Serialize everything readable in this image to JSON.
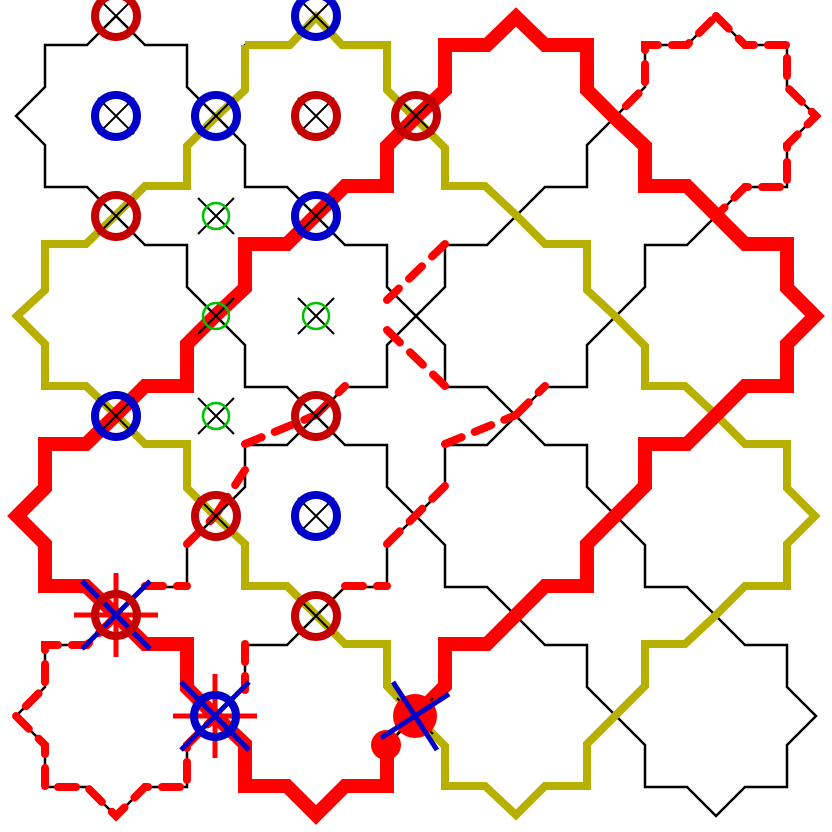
{
  "puzzle": {
    "grid_columns": 4,
    "grid_rows": 4,
    "tile_shape": "eight-point-star",
    "colors": {
      "background": "#ffffff",
      "outline": "#000000",
      "olive_path": "#b8b000",
      "red_path": "#ff0000",
      "crossing_dark_red": "#c40000",
      "crossing_blue": "#0000c8",
      "crossing_green": "#00c000"
    },
    "crossings": [
      {
        "col": 0,
        "row": 0,
        "type": "circle",
        "color": "crossing_dark_red"
      },
      {
        "col": 2,
        "row": 0,
        "type": "circle",
        "color": "crossing_blue"
      },
      {
        "col": 0,
        "row": 1,
        "type": "circle",
        "color": "crossing_blue"
      },
      {
        "col": 1,
        "row": 1,
        "type": "circle",
        "color": "crossing_blue"
      },
      {
        "col": 2,
        "row": 1,
        "type": "circle",
        "color": "crossing_dark_red"
      },
      {
        "col": 3,
        "row": 1,
        "type": "circle",
        "color": "crossing_dark_red"
      },
      {
        "col": 0,
        "row": 2,
        "type": "circle",
        "color": "crossing_dark_red"
      },
      {
        "col": 1,
        "row": 2,
        "type": "small-circle",
        "color": "crossing_green"
      },
      {
        "col": 2,
        "row": 2,
        "type": "circle",
        "color": "crossing_blue"
      },
      {
        "col": 1,
        "row": 3,
        "type": "small-circle",
        "color": "crossing_green"
      },
      {
        "col": 2,
        "row": 3,
        "type": "small-circle",
        "color": "crossing_green"
      },
      {
        "col": 0,
        "row": 4,
        "type": "circle",
        "color": "crossing_blue"
      },
      {
        "col": 1,
        "row": 4,
        "type": "small-circle",
        "color": "crossing_green"
      },
      {
        "col": 2,
        "row": 4,
        "type": "circle",
        "color": "crossing_dark_red"
      },
      {
        "col": -1,
        "row": 5,
        "type": "circle-spokes",
        "color": "crossing_dark_red"
      },
      {
        "col": 1,
        "row": 5,
        "type": "circle",
        "color": "crossing_dark_red"
      },
      {
        "col": 2,
        "row": 5,
        "type": "circle",
        "color": "crossing_blue"
      },
      {
        "col": 0,
        "row": 6,
        "type": "circle-spokes",
        "color": "crossing_blue"
      },
      {
        "col": 1,
        "row": 6,
        "type": "junction-dot",
        "color": "red_path"
      },
      {
        "col": 2,
        "row": 6,
        "type": "circle",
        "color": "crossing_dark_red"
      }
    ]
  }
}
